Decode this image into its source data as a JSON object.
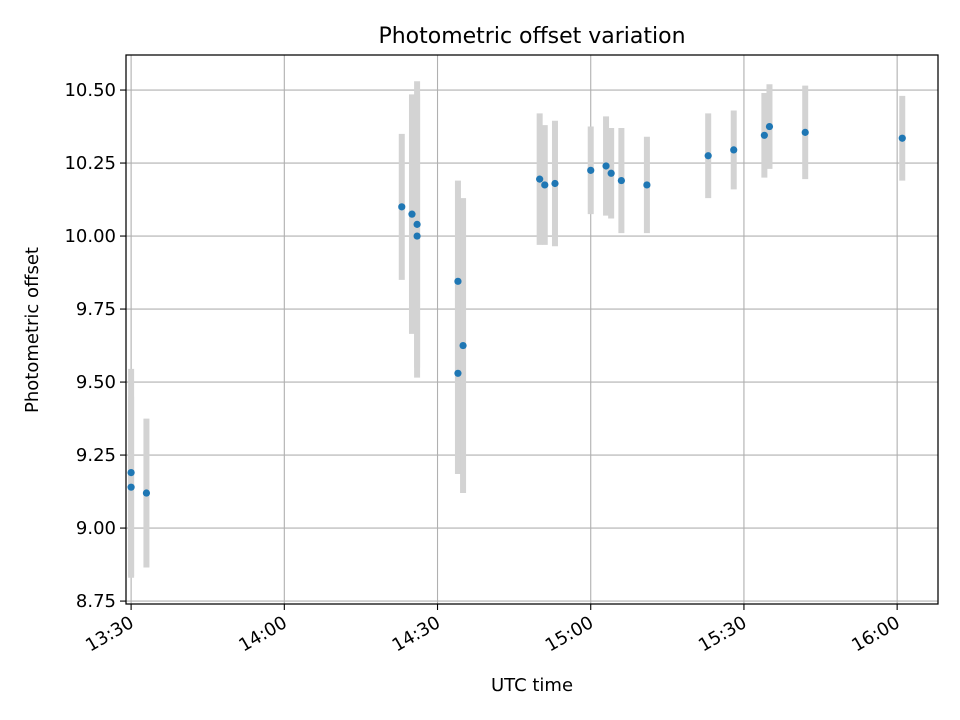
{
  "chart_data": {
    "type": "scatter",
    "title": "Photometric offset variation",
    "xlabel": "UTC time",
    "ylabel": "Photometric offset",
    "x_ticks": [
      "13:30",
      "14:00",
      "14:30",
      "15:00",
      "15:30",
      "16:00"
    ],
    "y_ticks": [
      "8.75",
      "9.00",
      "9.25",
      "9.50",
      "9.75",
      "10.00",
      "10.25",
      "10.50"
    ],
    "xlim": [
      "13:29",
      "16:08"
    ],
    "ylim": [
      8.74,
      10.62
    ],
    "grid": true,
    "marker_color": "#1f77b4",
    "errorbar_color": "#d3d3d3",
    "points": [
      {
        "x": "13:30",
        "y": 9.19,
        "err": 0.355
      },
      {
        "x": "13:30",
        "y": 9.14,
        "err": 0.31
      },
      {
        "x": "13:33",
        "y": 9.12,
        "err": 0.255
      },
      {
        "x": "14:23",
        "y": 10.1,
        "err": 0.25
      },
      {
        "x": "14:25",
        "y": 10.075,
        "err": 0.41
      },
      {
        "x": "14:26",
        "y": 10.04,
        "err": 0.49
      },
      {
        "x": "14:26",
        "y": 10.0,
        "err": 0.485
      },
      {
        "x": "14:34",
        "y": 9.845,
        "err": 0.345
      },
      {
        "x": "14:34",
        "y": 9.53,
        "err": 0.345
      },
      {
        "x": "14:35",
        "y": 9.625,
        "err": 0.505
      },
      {
        "x": "14:50",
        "y": 10.195,
        "err": 0.225
      },
      {
        "x": "14:51",
        "y": 10.175,
        "err": 0.205
      },
      {
        "x": "14:53",
        "y": 10.18,
        "err": 0.215
      },
      {
        "x": "15:00",
        "y": 10.225,
        "err": 0.15
      },
      {
        "x": "15:03",
        "y": 10.24,
        "err": 0.17
      },
      {
        "x": "15:04",
        "y": 10.215,
        "err": 0.155
      },
      {
        "x": "15:06",
        "y": 10.19,
        "err": 0.18
      },
      {
        "x": "15:11",
        "y": 10.175,
        "err": 0.165
      },
      {
        "x": "15:23",
        "y": 10.275,
        "err": 0.145
      },
      {
        "x": "15:28",
        "y": 10.295,
        "err": 0.135
      },
      {
        "x": "15:34",
        "y": 10.345,
        "err": 0.145
      },
      {
        "x": "15:35",
        "y": 10.375,
        "err": 0.145
      },
      {
        "x": "15:42",
        "y": 10.355,
        "err": 0.16
      },
      {
        "x": "16:01",
        "y": 10.335,
        "err": 0.145
      }
    ]
  }
}
